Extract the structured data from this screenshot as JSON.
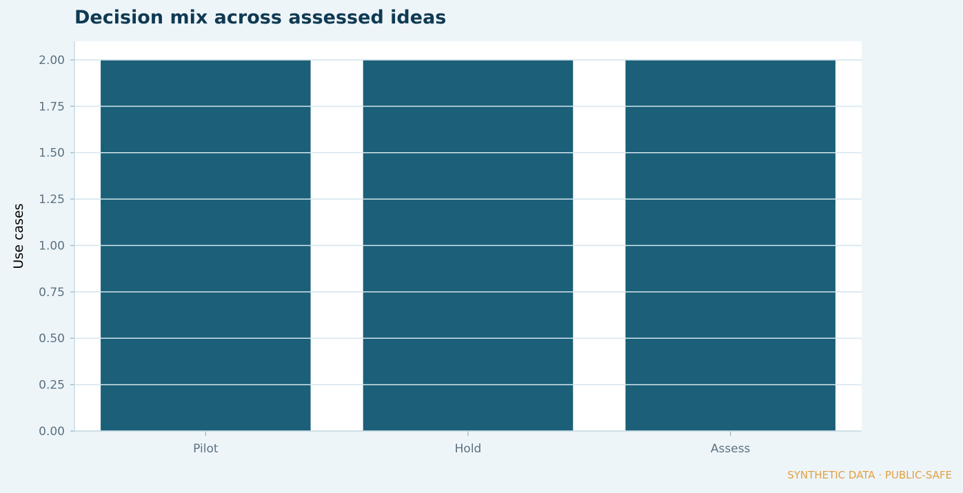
{
  "chart_data": {
    "type": "bar",
    "title": "Decision mix across assessed ideas",
    "xlabel": "",
    "ylabel": "Use cases",
    "categories": [
      "Pilot",
      "Hold",
      "Assess"
    ],
    "values": [
      2,
      2,
      2
    ],
    "ylim": [
      0,
      2.1
    ],
    "yticks": [
      "0.00",
      "0.25",
      "0.50",
      "0.75",
      "1.00",
      "1.25",
      "1.50",
      "1.75",
      "2.00"
    ],
    "grid": true,
    "bar_color": "#1b5f79",
    "grid_color": "#d6e7ee",
    "background_color": "#eef5f9",
    "plot_background_color": "#ffffff"
  },
  "footer": {
    "note": "SYNTHETIC DATA · PUBLIC-SAFE",
    "note_color": "#e0a040"
  }
}
